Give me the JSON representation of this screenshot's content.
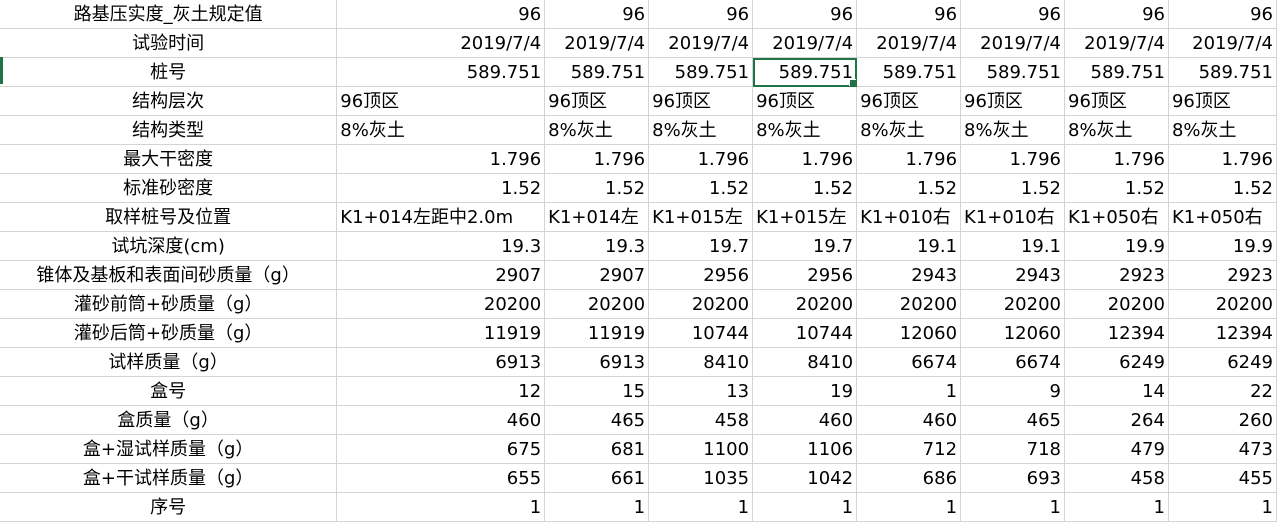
{
  "rows": [
    {
      "label": "路基压实度_灰土规定值",
      "align": "num",
      "cells": [
        "96",
        "96",
        "96",
        "96",
        "96",
        "96",
        "96",
        "96"
      ]
    },
    {
      "label": "试验时间",
      "align": "num",
      "cells": [
        "2019/7/4",
        "2019/7/4",
        "2019/7/4",
        "2019/7/4",
        "2019/7/4",
        "2019/7/4",
        "2019/7/4",
        "2019/7/4"
      ]
    },
    {
      "label": "桩号",
      "align": "num",
      "cells": [
        "589.751",
        "589.751",
        "589.751",
        "589.751",
        "589.751",
        "589.751",
        "589.751",
        "589.751"
      ]
    },
    {
      "label": "结构层次",
      "align": "txt",
      "cells": [
        "96顶区",
        "96顶区",
        "96顶区",
        "96顶区",
        "96顶区",
        "96顶区",
        "96顶区",
        "96顶区"
      ]
    },
    {
      "label": "结构类型",
      "align": "txt",
      "cells": [
        "8%灰土",
        "8%灰土",
        "8%灰土",
        "8%灰土",
        "8%灰土",
        "8%灰土",
        "8%灰土",
        "8%灰土"
      ]
    },
    {
      "label": "最大干密度",
      "align": "num",
      "cells": [
        "1.796",
        "1.796",
        "1.796",
        "1.796",
        "1.796",
        "1.796",
        "1.796",
        "1.796"
      ]
    },
    {
      "label": "标准砂密度",
      "align": "num",
      "cells": [
        "1.52",
        "1.52",
        "1.52",
        "1.52",
        "1.52",
        "1.52",
        "1.52",
        "1.52"
      ]
    },
    {
      "label": "取样桩号及位置",
      "align": "txt",
      "cells": [
        "K1+014左距中2.0m",
        "K1+014左",
        "K1+015左",
        "K1+015左",
        "K1+010右",
        "K1+010右",
        "K1+050右",
        "K1+050右"
      ]
    },
    {
      "label": "试坑深度(cm)",
      "align": "num",
      "cells": [
        "19.3",
        "19.3",
        "19.7",
        "19.7",
        "19.1",
        "19.1",
        "19.9",
        "19.9"
      ]
    },
    {
      "label": "锥体及基板和表面间砂质量（g）",
      "align": "num",
      "cells": [
        "2907",
        "2907",
        "2956",
        "2956",
        "2943",
        "2943",
        "2923",
        "2923"
      ]
    },
    {
      "label": "灌砂前筒+砂质量（g）",
      "align": "num",
      "cells": [
        "20200",
        "20200",
        "20200",
        "20200",
        "20200",
        "20200",
        "20200",
        "20200"
      ]
    },
    {
      "label": "灌砂后筒+砂质量（g）",
      "align": "num",
      "cells": [
        "11919",
        "11919",
        "10744",
        "10744",
        "12060",
        "12060",
        "12394",
        "12394"
      ]
    },
    {
      "label": "试样质量（g）",
      "align": "num",
      "cells": [
        "6913",
        "6913",
        "8410",
        "8410",
        "6674",
        "6674",
        "6249",
        "6249"
      ]
    },
    {
      "label": "盒号",
      "align": "num",
      "cells": [
        "12",
        "15",
        "13",
        "19",
        "1",
        "9",
        "14",
        "22"
      ]
    },
    {
      "label": "盒质量（g）",
      "align": "num",
      "cells": [
        "460",
        "465",
        "458",
        "460",
        "460",
        "465",
        "264",
        "260"
      ]
    },
    {
      "label": "盒+湿试样质量（g）",
      "align": "num",
      "cells": [
        "675",
        "681",
        "1100",
        "1106",
        "712",
        "718",
        "479",
        "473"
      ]
    },
    {
      "label": "盒+干试样质量（g）",
      "align": "num",
      "cells": [
        "655",
        "661",
        "1035",
        "1042",
        "686",
        "693",
        "458",
        "455"
      ]
    },
    {
      "label": "序号",
      "align": "num",
      "cells": [
        "1",
        "1",
        "1",
        "1",
        "1",
        "1",
        "1",
        "1"
      ]
    }
  ],
  "selected": {
    "row": 2,
    "col": 3
  }
}
